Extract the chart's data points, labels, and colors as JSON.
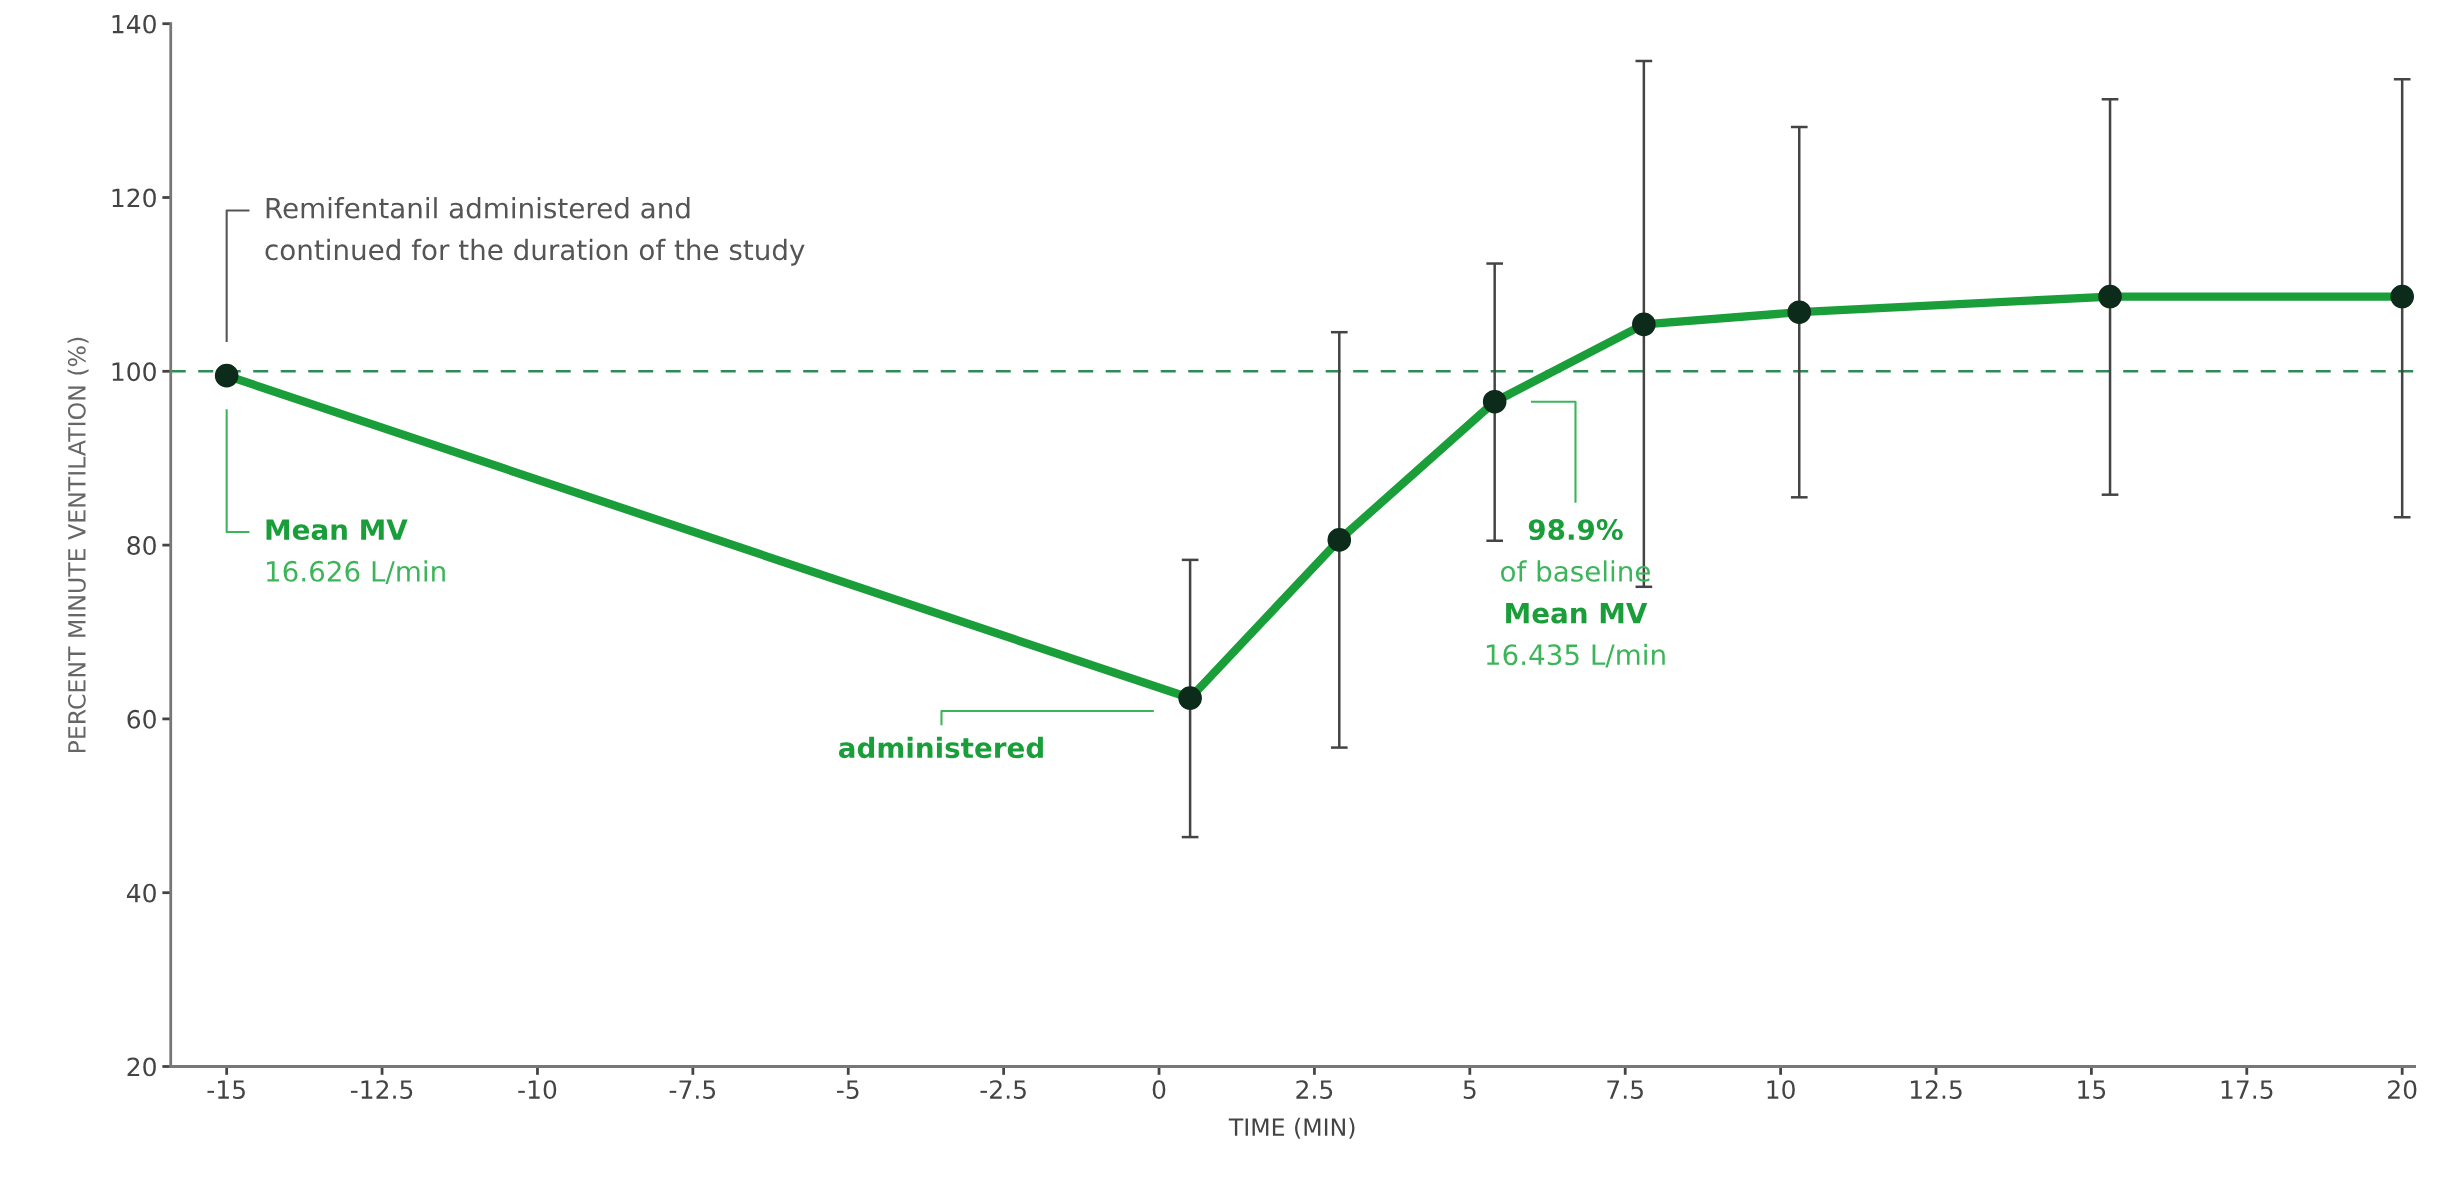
{
  "chart_data": {
    "type": "line",
    "xlabel": "TIME (MIN)",
    "ylabel": "PERCENT MINUTE VENTILATION (%)",
    "x": [
      -15,
      0.5,
      2.9,
      5.4,
      7.8,
      10.3,
      15.3,
      20
    ],
    "series": [
      {
        "color": "#1a9e3a",
        "values": [
          99.5,
          62.4,
          80.6,
          96.5,
          105.4,
          106.8,
          108.6,
          108.6
        ],
        "errors": [
          null,
          [
            46.4,
            78.3
          ],
          [
            56.7,
            104.5
          ],
          [
            80.5,
            112.4
          ],
          [
            75.2,
            135.7
          ],
          [
            85.5,
            128.1
          ],
          [
            85.8,
            131.3
          ],
          [
            83.2,
            133.6
          ]
        ]
      }
    ],
    "xlim": [
      -15.9,
      20.2
    ],
    "ylim": [
      20,
      140
    ],
    "xticks": [
      -15,
      -12.5,
      -10,
      -7.5,
      -5,
      -2.5,
      0,
      2.5,
      5,
      7.5,
      10,
      12.5,
      15,
      17.5,
      20
    ],
    "yticks": [
      20,
      40,
      60,
      80,
      100,
      120,
      140
    ],
    "marker": "circle",
    "line_style": "solid",
    "grid": false,
    "ref_lines": [
      {
        "axis": "y",
        "value": 100,
        "color": "#2e8b57",
        "line_style": "dashed"
      }
    ],
    "annotations": [
      "Remifentanil administered and\ncontinued for the duration of the study",
      "Mean MV\n16.626 L/min",
      "administered",
      "98.9%\nof baseline\nMean MV\n16.435 L/min"
    ]
  }
}
